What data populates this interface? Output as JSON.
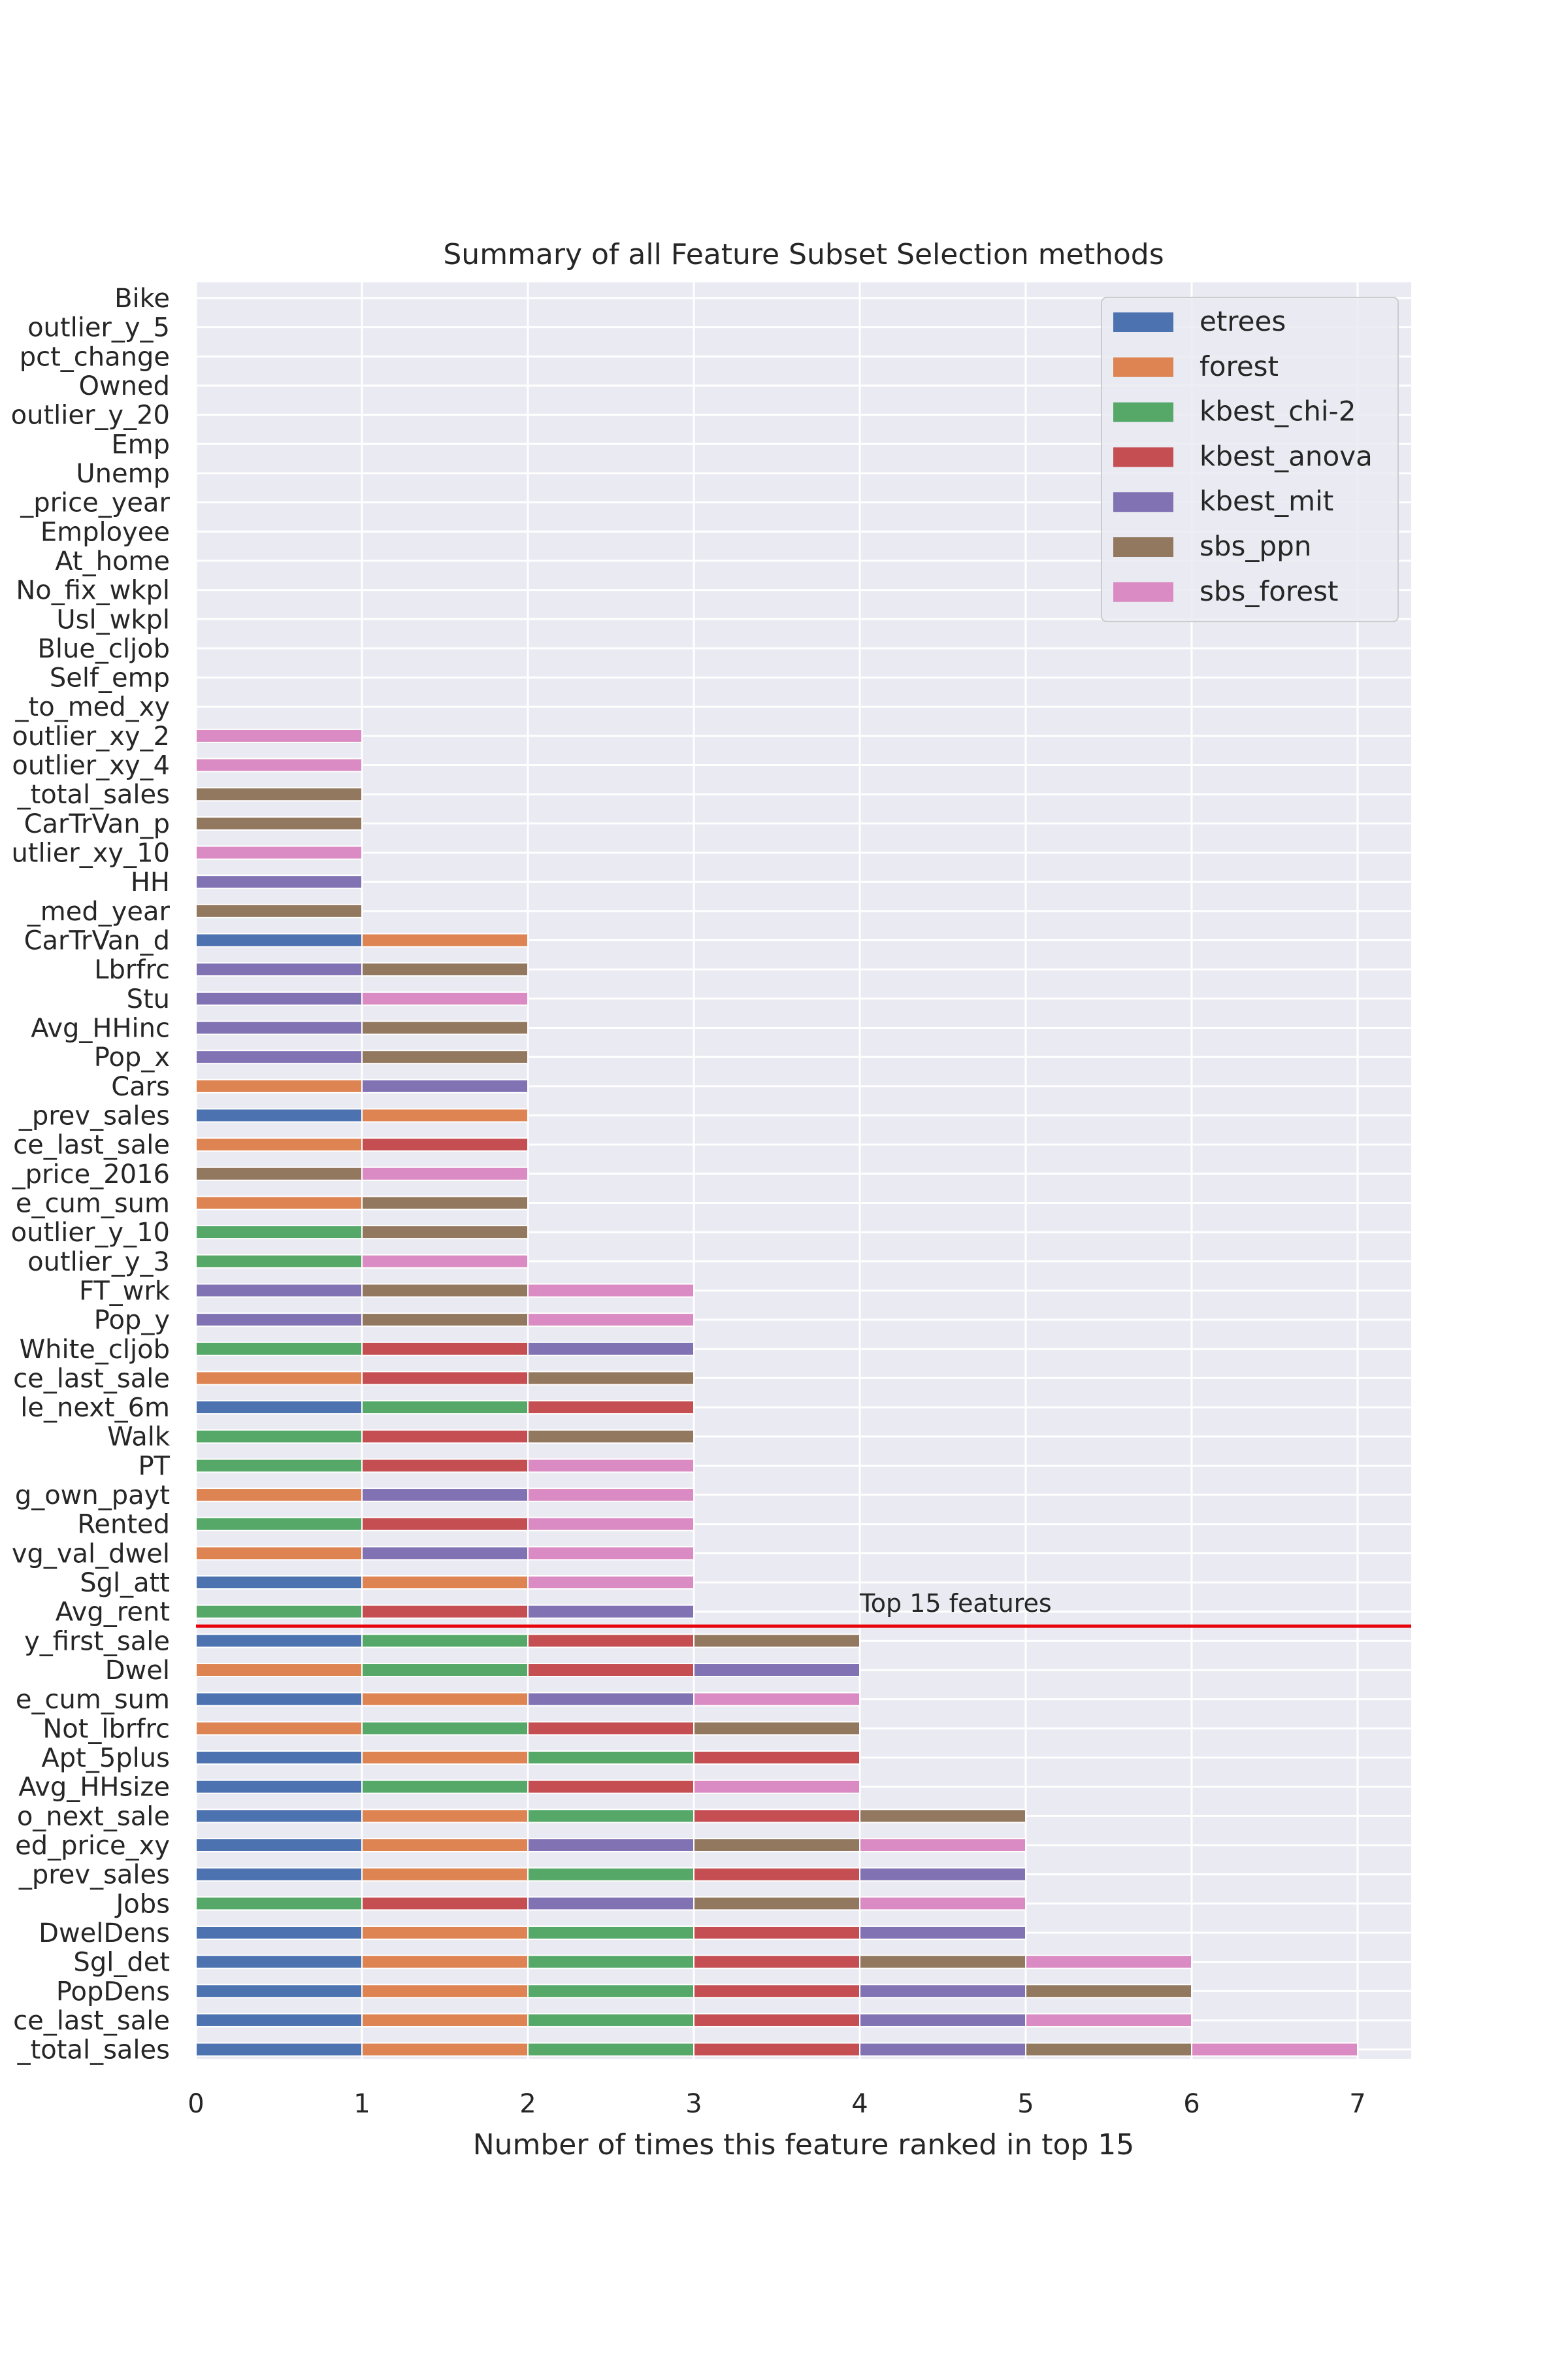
{
  "chart_data": {
    "type": "bar",
    "orientation": "horizontal",
    "stacked": true,
    "title": "Summary of all Feature Subset Selection methods",
    "xlabel": "Number of times this feature ranked in top 15",
    "ylabel": "",
    "xlim": [
      0,
      7.35
    ],
    "xticks": [
      0,
      1,
      2,
      3,
      4,
      5,
      6,
      7
    ],
    "grid": true,
    "legend_position": "top-right",
    "methods": [
      "etrees",
      "forest",
      "kbest_chi-2",
      "kbest_anova",
      "kbest_mit",
      "sbs_ppn",
      "sbs_forest"
    ],
    "colors": {
      "etrees": "#4c72b0",
      "forest": "#dd8452",
      "kbest_chi-2": "#55a868",
      "kbest_anova": "#c44e52",
      "kbest_mit": "#8172b3",
      "sbs_ppn": "#937860",
      "sbs_forest": "#da8bc3"
    },
    "annotation": {
      "text": "Top 15 features",
      "after_rank": 15,
      "line_color": "#e8000b"
    },
    "features": [
      {
        "label": "Bike",
        "segments": []
      },
      {
        "label": "outlier_y_5",
        "segments": []
      },
      {
        "label": "pct_change",
        "segments": []
      },
      {
        "label": "Owned",
        "segments": []
      },
      {
        "label": "outlier_y_20",
        "segments": []
      },
      {
        "label": "Emp",
        "segments": []
      },
      {
        "label": "Unemp",
        "segments": []
      },
      {
        "label": "_price_year",
        "segments": []
      },
      {
        "label": "Employee",
        "segments": []
      },
      {
        "label": "At_home",
        "segments": []
      },
      {
        "label": "No_fix_wkpl",
        "segments": []
      },
      {
        "label": "Usl_wkpl",
        "segments": []
      },
      {
        "label": "Blue_cljob",
        "segments": []
      },
      {
        "label": "Self_emp",
        "segments": []
      },
      {
        "label": "_to_med_xy",
        "segments": []
      },
      {
        "label": "outlier_xy_2",
        "segments": [
          "sbs_forest"
        ]
      },
      {
        "label": "outlier_xy_4",
        "segments": [
          "sbs_forest"
        ]
      },
      {
        "label": "_total_sales",
        "segments": [
          "sbs_ppn"
        ]
      },
      {
        "label": "CarTrVan_p",
        "segments": [
          "sbs_ppn"
        ]
      },
      {
        "label": "utlier_xy_10",
        "segments": [
          "sbs_forest"
        ]
      },
      {
        "label": "HH",
        "segments": [
          "kbest_mit"
        ]
      },
      {
        "label": "_med_year",
        "segments": [
          "sbs_ppn"
        ]
      },
      {
        "label": "CarTrVan_d",
        "segments": [
          "etrees",
          "forest"
        ]
      },
      {
        "label": "Lbrfrc",
        "segments": [
          "kbest_mit",
          "sbs_ppn"
        ]
      },
      {
        "label": "Stu",
        "segments": [
          "kbest_mit",
          "sbs_forest"
        ]
      },
      {
        "label": "Avg_HHinc",
        "segments": [
          "kbest_mit",
          "sbs_ppn"
        ]
      },
      {
        "label": "Pop_x",
        "segments": [
          "kbest_mit",
          "sbs_ppn"
        ]
      },
      {
        "label": "Cars",
        "segments": [
          "forest",
          "kbest_mit"
        ]
      },
      {
        "label": "_prev_sales",
        "segments": [
          "etrees",
          "forest"
        ]
      },
      {
        "label": "ce_last_sale",
        "segments": [
          "forest",
          "kbest_anova"
        ]
      },
      {
        "label": "_price_2016",
        "segments": [
          "sbs_ppn",
          "sbs_forest"
        ]
      },
      {
        "label": "e_cum_sum",
        "segments": [
          "forest",
          "sbs_ppn"
        ]
      },
      {
        "label": "outlier_y_10",
        "segments": [
          "kbest_chi-2",
          "sbs_ppn"
        ]
      },
      {
        "label": "outlier_y_3",
        "segments": [
          "kbest_chi-2",
          "sbs_forest"
        ]
      },
      {
        "label": "FT_wrk",
        "segments": [
          "kbest_mit",
          "sbs_ppn",
          "sbs_forest"
        ]
      },
      {
        "label": "Pop_y",
        "segments": [
          "kbest_mit",
          "sbs_ppn",
          "sbs_forest"
        ]
      },
      {
        "label": "White_cljob",
        "segments": [
          "kbest_chi-2",
          "kbest_anova",
          "kbest_mit"
        ]
      },
      {
        "label": "ce_last_sale",
        "segments": [
          "forest",
          "kbest_anova",
          "sbs_ppn"
        ]
      },
      {
        "label": "le_next_6m",
        "segments": [
          "etrees",
          "kbest_chi-2",
          "kbest_anova"
        ]
      },
      {
        "label": "Walk",
        "segments": [
          "kbest_chi-2",
          "kbest_anova",
          "sbs_ppn"
        ]
      },
      {
        "label": "PT",
        "segments": [
          "kbest_chi-2",
          "kbest_anova",
          "sbs_forest"
        ]
      },
      {
        "label": "g_own_payt",
        "segments": [
          "forest",
          "kbest_mit",
          "sbs_forest"
        ]
      },
      {
        "label": "Rented",
        "segments": [
          "kbest_chi-2",
          "kbest_anova",
          "sbs_forest"
        ]
      },
      {
        "label": "vg_val_dwel",
        "segments": [
          "forest",
          "kbest_mit",
          "sbs_forest"
        ]
      },
      {
        "label": "Sgl_att",
        "segments": [
          "etrees",
          "forest",
          "sbs_forest"
        ]
      },
      {
        "label": "Avg_rent",
        "segments": [
          "kbest_chi-2",
          "kbest_anova",
          "kbest_mit"
        ]
      },
      {
        "label": "y_first_sale",
        "segments": [
          "etrees",
          "kbest_chi-2",
          "kbest_anova",
          "sbs_ppn"
        ]
      },
      {
        "label": "Dwel",
        "segments": [
          "forest",
          "kbest_chi-2",
          "kbest_anova",
          "kbest_mit"
        ]
      },
      {
        "label": "e_cum_sum",
        "segments": [
          "etrees",
          "forest",
          "kbest_mit",
          "sbs_forest"
        ]
      },
      {
        "label": "Not_lbrfrc",
        "segments": [
          "forest",
          "kbest_chi-2",
          "kbest_anova",
          "sbs_ppn"
        ]
      },
      {
        "label": "Apt_5plus",
        "segments": [
          "etrees",
          "forest",
          "kbest_chi-2",
          "kbest_anova"
        ]
      },
      {
        "label": "Avg_HHsize",
        "segments": [
          "etrees",
          "kbest_chi-2",
          "kbest_anova",
          "sbs_forest"
        ]
      },
      {
        "label": "o_next_sale",
        "segments": [
          "etrees",
          "forest",
          "kbest_chi-2",
          "kbest_anova",
          "sbs_ppn"
        ]
      },
      {
        "label": "ed_price_xy",
        "segments": [
          "etrees",
          "forest",
          "kbest_mit",
          "sbs_ppn",
          "sbs_forest"
        ]
      },
      {
        "label": "_prev_sales",
        "segments": [
          "etrees",
          "forest",
          "kbest_chi-2",
          "kbest_anova",
          "kbest_mit"
        ]
      },
      {
        "label": "Jobs",
        "segments": [
          "kbest_chi-2",
          "kbest_anova",
          "kbest_mit",
          "sbs_ppn",
          "sbs_forest"
        ]
      },
      {
        "label": "DwelDens",
        "segments": [
          "etrees",
          "forest",
          "kbest_chi-2",
          "kbest_anova",
          "kbest_mit"
        ]
      },
      {
        "label": "Sgl_det",
        "segments": [
          "etrees",
          "forest",
          "kbest_chi-2",
          "kbest_anova",
          "sbs_ppn",
          "sbs_forest"
        ]
      },
      {
        "label": "PopDens",
        "segments": [
          "etrees",
          "forest",
          "kbest_chi-2",
          "kbest_anova",
          "kbest_mit",
          "sbs_ppn"
        ]
      },
      {
        "label": "ce_last_sale",
        "segments": [
          "etrees",
          "forest",
          "kbest_chi-2",
          "kbest_anova",
          "kbest_mit",
          "sbs_forest"
        ]
      },
      {
        "label": "_total_sales",
        "segments": [
          "etrees",
          "forest",
          "kbest_chi-2",
          "kbest_anova",
          "kbest_mit",
          "sbs_ppn",
          "sbs_forest"
        ]
      }
    ]
  }
}
